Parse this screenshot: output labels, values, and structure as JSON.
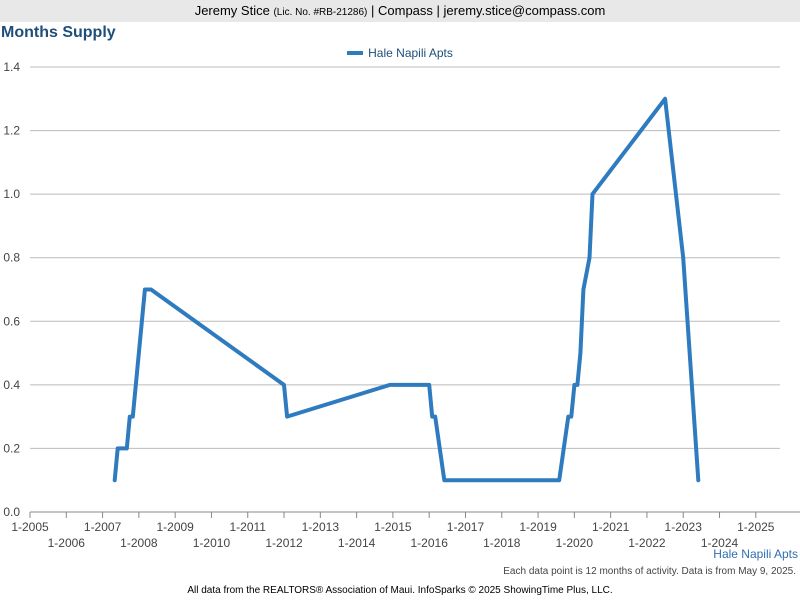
{
  "header": {
    "name": "Jeremy Stice",
    "license": "(Lic. No. #RB-21286)",
    "rest": "| Compass | jeremy.stice@compass.com"
  },
  "colors": {
    "series": "#2f7bbf",
    "title": "#1f4e79",
    "grid": "#bbbbbb"
  },
  "note": "Each data point is 12 months of activity. Data is from May 9, 2025.",
  "footer": "All data from the REALTORS® Association of Maui. InfoSparks © 2025 ShowingTime Plus, LLC.",
  "chart_data": {
    "type": "line",
    "title": "Months Supply",
    "xlabel": "",
    "ylabel": "",
    "ylim": [
      0,
      1.4
    ],
    "yticks": [
      "0.0",
      "0.2",
      "0.4",
      "0.6",
      "0.8",
      "1.0",
      "1.2",
      "1.4"
    ],
    "xlim": [
      "2005-01",
      "2025-09"
    ],
    "xticks": [
      "1-2005",
      "1-2006",
      "1-2007",
      "1-2008",
      "1-2009",
      "1-2010",
      "1-2011",
      "1-2012",
      "1-2013",
      "1-2014",
      "1-2015",
      "1-2016",
      "1-2017",
      "1-2018",
      "1-2019",
      "1-2020",
      "1-2021",
      "1-2022",
      "1-2023",
      "1-2024",
      "1-2025"
    ],
    "grid": true,
    "legend": "top-center",
    "series": [
      {
        "name": "Hale Napili Apts",
        "points": [
          {
            "x": "2007-05",
            "y": 0.1
          },
          {
            "x": "2007-06",
            "y": 0.2
          },
          {
            "x": "2007-09",
            "y": 0.2
          },
          {
            "x": "2007-10",
            "y": 0.3
          },
          {
            "x": "2007-11",
            "y": 0.3
          },
          {
            "x": "2008-03",
            "y": 0.7
          },
          {
            "x": "2008-05",
            "y": 0.7
          },
          {
            "x": "2012-01",
            "y": 0.4
          },
          {
            "x": "2012-02",
            "y": 0.3
          },
          {
            "x": "2014-12",
            "y": 0.4
          },
          {
            "x": "2016-01",
            "y": 0.4
          },
          {
            "x": "2016-02",
            "y": 0.3
          },
          {
            "x": "2016-03",
            "y": 0.3
          },
          {
            "x": "2016-06",
            "y": 0.1
          },
          {
            "x": "2019-08",
            "y": 0.1
          },
          {
            "x": "2019-11",
            "y": 0.3
          },
          {
            "x": "2019-12",
            "y": 0.3
          },
          {
            "x": "2020-01",
            "y": 0.4
          },
          {
            "x": "2020-02",
            "y": 0.4
          },
          {
            "x": "2020-03",
            "y": 0.5
          },
          {
            "x": "2020-04",
            "y": 0.7
          },
          {
            "x": "2020-06",
            "y": 0.8
          },
          {
            "x": "2020-07",
            "y": 1.0
          },
          {
            "x": "2022-07",
            "y": 1.3
          },
          {
            "x": "2023-01",
            "y": 0.8
          },
          {
            "x": "2023-06",
            "y": 0.1
          }
        ]
      }
    ]
  }
}
